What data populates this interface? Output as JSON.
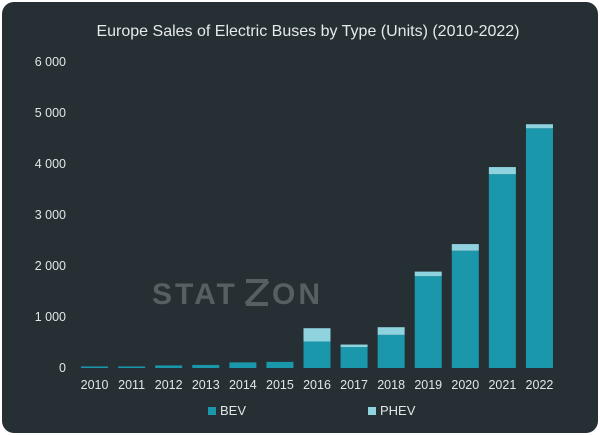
{
  "chart_data": {
    "type": "bar",
    "stacked": true,
    "title": "Europe Sales of Electric Buses by Type (Units) (2010-2022)",
    "xlabel": "",
    "ylabel": "",
    "categories": [
      "2010",
      "2011",
      "2012",
      "2013",
      "2014",
      "2015",
      "2016",
      "2017",
      "2018",
      "2019",
      "2020",
      "2021",
      "2022"
    ],
    "series": [
      {
        "name": "BEV",
        "color": "#1a97ab",
        "values": [
          30,
          30,
          50,
          60,
          110,
          120,
          520,
          410,
          650,
          1800,
          2300,
          3800,
          4700
        ]
      },
      {
        "name": "PHEV",
        "color": "#8fd3de",
        "values": [
          0,
          0,
          0,
          0,
          0,
          0,
          260,
          50,
          150,
          90,
          130,
          140,
          80
        ]
      }
    ],
    "ylim": [
      0,
      6000
    ],
    "yticks": [
      0,
      1000,
      2000,
      3000,
      4000,
      5000,
      6000
    ],
    "ytick_labels": [
      "0",
      "1 000",
      "2 000",
      "3 000",
      "4 000",
      "5 000",
      "6 000"
    ],
    "grid": false,
    "legend_position": "bottom"
  },
  "watermark": {
    "text_left": "STAT",
    "text_right": "ON"
  }
}
